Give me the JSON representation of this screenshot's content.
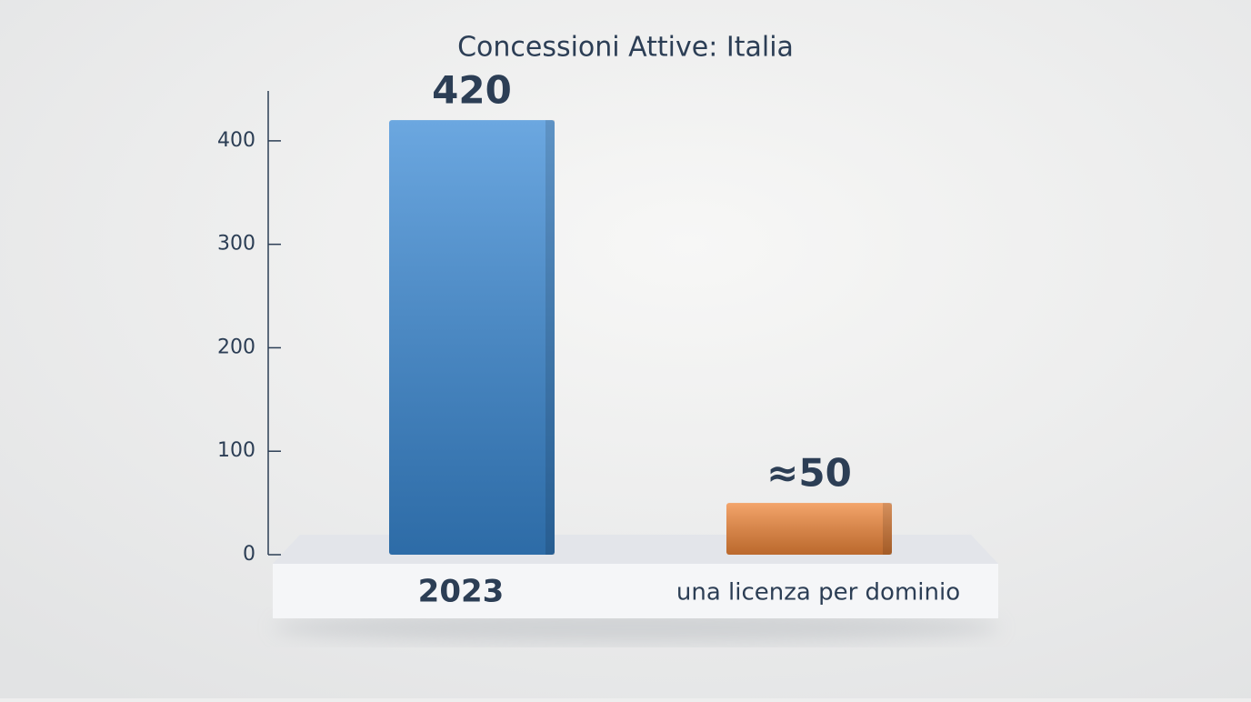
{
  "chart_data": {
    "type": "bar",
    "title": "Concessioni Attive: Italia",
    "categories": [
      "2023",
      "una licenza per dominio"
    ],
    "values": [
      420,
      50
    ],
    "value_labels": [
      "420",
      "≈50"
    ],
    "colors": [
      "#3a8ad6",
      "#f0873a"
    ],
    "ylim": [
      0,
      450
    ],
    "yticks": [
      0,
      100,
      200,
      300,
      400
    ]
  }
}
